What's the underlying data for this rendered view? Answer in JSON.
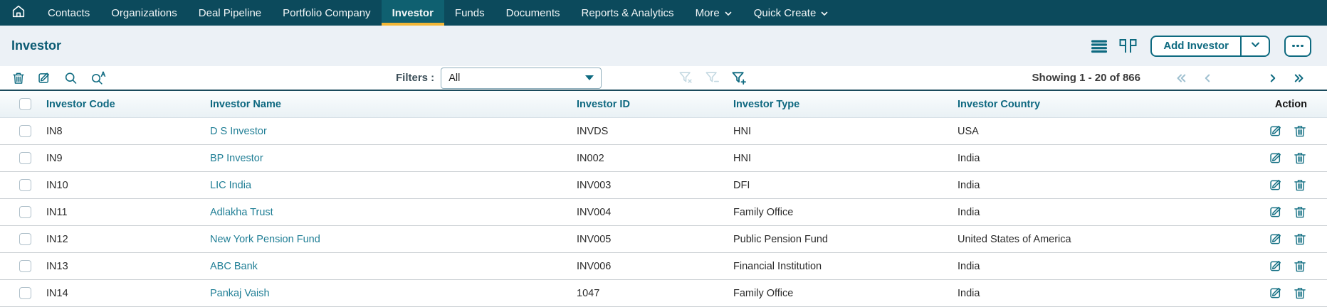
{
  "nav": {
    "items": [
      {
        "label": "Contacts",
        "active": false,
        "chevron": false
      },
      {
        "label": "Organizations",
        "active": false,
        "chevron": false
      },
      {
        "label": "Deal Pipeline",
        "active": false,
        "chevron": false
      },
      {
        "label": "Portfolio Company",
        "active": false,
        "chevron": false
      },
      {
        "label": "Investor",
        "active": true,
        "chevron": false
      },
      {
        "label": "Funds",
        "active": false,
        "chevron": false
      },
      {
        "label": "Documents",
        "active": false,
        "chevron": false
      },
      {
        "label": "Reports & Analytics",
        "active": false,
        "chevron": false
      },
      {
        "label": "More",
        "active": false,
        "chevron": true
      },
      {
        "label": "Quick Create",
        "active": false,
        "chevron": true
      }
    ]
  },
  "header": {
    "title": "Investor",
    "add_button_label": "Add Investor"
  },
  "toolbar": {
    "filters_label": "Filters :",
    "filter_selected_value": "All",
    "showing_text": "Showing 1 - 20 of 866"
  },
  "table": {
    "columns": [
      "Investor Code",
      "Investor Name",
      "Investor ID",
      "Investor Type",
      "Investor Country",
      "Action"
    ],
    "rows": [
      {
        "code": "IN8",
        "name": "D S Investor",
        "id": "INVDS",
        "type": "HNI",
        "country": "USA"
      },
      {
        "code": "IN9",
        "name": "BP Investor",
        "id": "IN002",
        "type": "HNI",
        "country": "India"
      },
      {
        "code": "IN10",
        "name": "LIC India",
        "id": "INV003",
        "type": "DFI",
        "country": "India"
      },
      {
        "code": "IN11",
        "name": "Adlakha Trust",
        "id": "INV004",
        "type": "Family Office",
        "country": "India"
      },
      {
        "code": "IN12",
        "name": "New York Pension Fund",
        "id": "INV005",
        "type": "Public Pension Fund",
        "country": "United States of America"
      },
      {
        "code": "IN13",
        "name": "ABC Bank",
        "id": "INV006",
        "type": "Financial Institution",
        "country": "India"
      },
      {
        "code": "IN14",
        "name": "Pankaj Vaish",
        "id": "1047",
        "type": "Family Office",
        "country": "India"
      }
    ]
  },
  "colors": {
    "nav_background": "#0C4A5C",
    "active_tab_background": "#0F6070",
    "active_tab_underline": "#F2B636",
    "accent_teal": "#0E6A80",
    "link_teal": "#1F7E95",
    "header_background": "#ECF1F6"
  }
}
